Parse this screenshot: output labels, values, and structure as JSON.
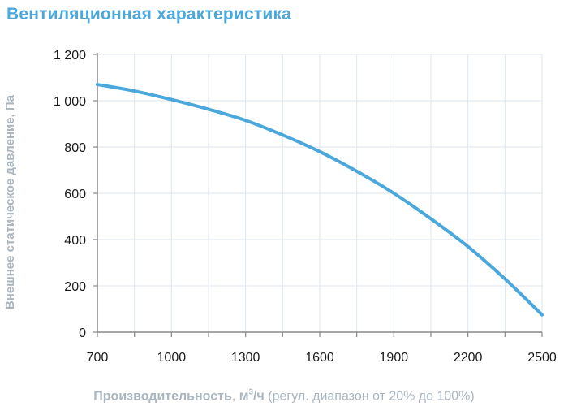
{
  "header": {
    "title": "Вентиляционная характеристика"
  },
  "axes": {
    "ylabel": "Внешнее статическое давление, Па",
    "xlabel_bold": "Производительность",
    "xlabel_sep": ", ",
    "xlabel_unit": "м",
    "xlabel_unit_sup": "3",
    "xlabel_unit_rest": "/ч",
    "xlabel_note": " (регул. диапазон от 20% до 100%)"
  },
  "colors": {
    "title": "#4aa8dc",
    "curve": "#4aa8dc",
    "axis_label": "#a9b6c0",
    "grid": "#dde6ef",
    "axis": "#888888"
  },
  "chart_data": {
    "type": "line",
    "title": "Вентиляционная характеристика",
    "xlabel": "Производительность, м³/ч (регул. диапазон от 20% до 100%)",
    "ylabel": "Внешнее статическое давление, Па",
    "xlim": [
      700,
      2500
    ],
    "ylim": [
      0,
      1200
    ],
    "x_ticks": [
      700,
      1000,
      1300,
      1600,
      1900,
      2200,
      2500
    ],
    "x_minor_step": 150,
    "y_ticks": [
      0,
      200,
      400,
      600,
      800,
      1000,
      1200
    ],
    "y_tick_labels": [
      "0",
      "200",
      "400",
      "600",
      "800",
      "1 000",
      "1 200"
    ],
    "grid": true,
    "legend": null,
    "series": [
      {
        "name": "Вентиляционная характеристика",
        "x": [
          700,
          850,
          1000,
          1150,
          1300,
          1450,
          1600,
          1750,
          1900,
          2050,
          2200,
          2350,
          2500
        ],
        "values": [
          1070,
          1042,
          1005,
          963,
          915,
          852,
          780,
          695,
          600,
          490,
          370,
          230,
          75
        ]
      }
    ]
  }
}
